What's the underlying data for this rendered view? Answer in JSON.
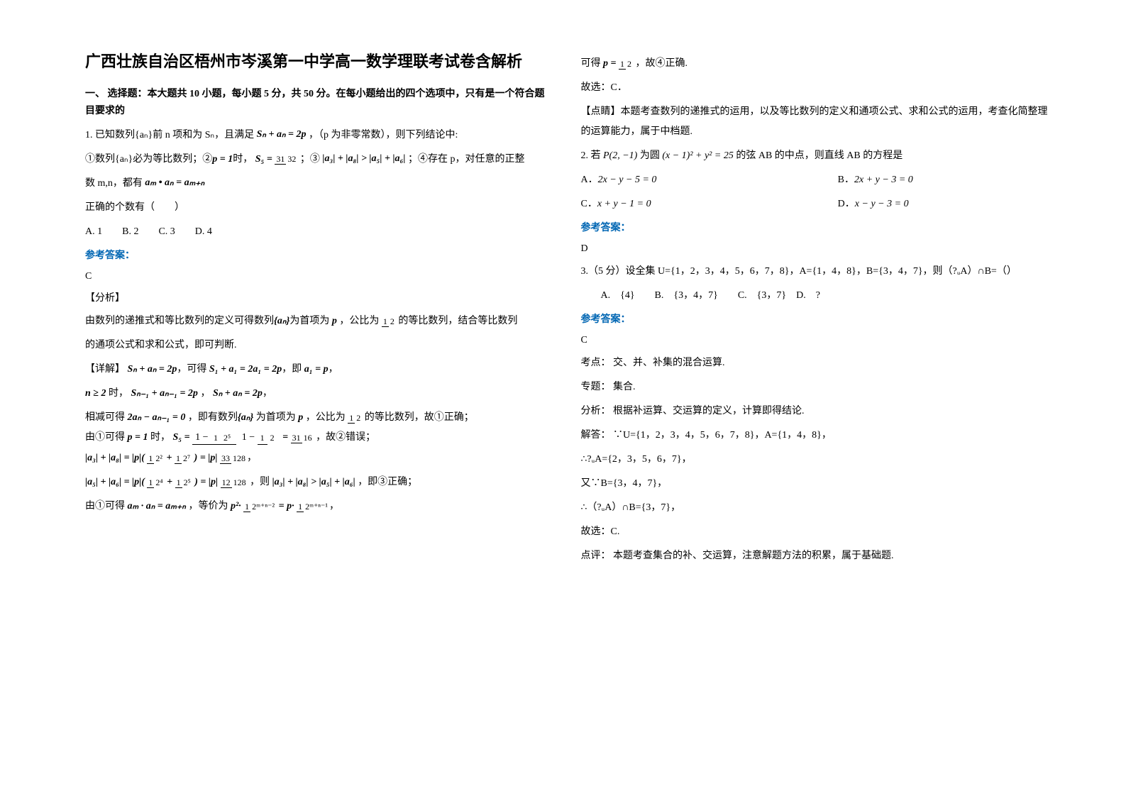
{
  "title": "广西壮族自治区梧州市岑溪第一中学高一数学理联考试卷含解析",
  "section1_head": "一、 选择题：本大题共 10 小题，每小题 5 分，共 50 分。在每小题给出的四个选项中，只有是一个符合题目要求的",
  "q1_intro": "1. 已知数列{aₙ}前 n 项和为 Sₙ，且满足 ",
  "q1_formula1": "Sₙ + aₙ = 2p",
  "q1_intro2": "，（p 为非零常数），则下列结论中:",
  "q1_line2a": "①数列{aₙ}必为等比数列；②",
  "q1_line2_p": "p = 1",
  "q1_line2b": "时，",
  "q1_s5_num": "31",
  "q1_s5_den": "32",
  "q1_line2c": "；③",
  "q1_abs": "|a₃| + |a₈| > |a₅| + |a₆|",
  "q1_line2d": "；④存在 p，对任意的正整",
  "q1_line3a": "数 m,n，都有 ",
  "q1_line3f": "aₘ • aₙ = aₘ₊ₙ",
  "q1_correct": "正确的个数有（　　）",
  "q1_opts": "A. 1　　B. 2　　C. 3　　D. 4",
  "answer_label": "参考答案：",
  "q1_ans": "C",
  "analysis_label": "【分析】",
  "q1_analysis1a": "由数列的递推式和等比数列的定义可得数列",
  "q1_analysis1b": "为首项为",
  "q1_analysis1c": "，公比为",
  "q1_half_top": "1",
  "q1_half_bot": "2",
  "q1_analysis1d": "的等比数列，结合等比数列",
  "q1_analysis2": "的通项公式和求和公式，即可判断.",
  "detail_label": "【详解】",
  "q1_d1": "Sₙ + aₙ = 2p",
  "q1_d1b": "，可得",
  "q1_d1c": "S₁ + a₁ = 2a₁ = 2p",
  "q1_d1d": "，即",
  "q1_d1e": "a₁ = p",
  "q1_d2a": "n ≥ 2",
  "q1_d2b": "时，",
  "q1_d2c": "Sₙ₋₁ + aₙ₋₁ = 2p",
  "q1_d2d": "，",
  "q1_d2e": "Sₙ + aₙ = 2p",
  "q1_d3a": "相减可得",
  "q1_d3b": "2aₙ − aₙ₋₁ = 0",
  "q1_d3c": "，即有数列",
  "q1_d3d": "为首项为",
  "q1_d3e": "，公比为",
  "q1_d3f": "的等比数列，故①正确；",
  "q1_d4a": "由①可得",
  "q1_d4b": "p = 1",
  "q1_d4c": "时，",
  "q1_s5eq_top1": "1",
  "q1_s5eq_top2": "2⁵",
  "q1_s5eq_bot1": "1",
  "q1_s5eq_bot2": "2",
  "q1_s5eq_r1": "31",
  "q1_s5eq_r2": "16",
  "q1_d4d": "，故②错误；",
  "q1_d5": "|a₃| + |a₈| = |p|(",
  "q1_d5a": "1",
  "q1_d5b": "2²",
  "q1_d5c": "1",
  "q1_d5d": "2⁷",
  "q1_d5e": ") = |p|",
  "q1_d5f": "33",
  "q1_d5g": "128",
  "q1_d6": "|a₅| + |a₆| = |p|(",
  "q1_d6a": "1",
  "q1_d6b": "2⁴",
  "q1_d6c": "1",
  "q1_d6d": "2⁵",
  "q1_d6e": ") = |p|",
  "q1_d6f": "12",
  "q1_d6g": "128",
  "q1_d6h": "，则",
  "q1_d6i": "|a₃| + |a₈| > |a₅| + |a₆|",
  "q1_d6j": "，即③正确；",
  "q1_d7a": "由①可得",
  "q1_d7b": "aₘ · aₙ = aₘ₊ₙ",
  "q1_d7c": "，等价为",
  "q1_d7d": "p²·",
  "q1_d7e": "1",
  "q1_d7f": "2ᵐ⁺ⁿ⁻²",
  "q1_d7g": " = p·",
  "q1_d7h": "1",
  "q1_d7i": "2ᵐ⁺ⁿ⁻¹",
  "q1_r1a": "可得",
  "q1_r1b_top": "1",
  "q1_r1b_bot": "2",
  "q1_r1c": "，故④正确.",
  "q1_r2": "故选：C．",
  "comment_label": "【点睛】",
  "q1_comment": "本题考查数列的递推式的运用，以及等比数列的定义和通项公式、求和公式的运用，考查化简整理的运算能力，属于中档题.",
  "q2_a": "2. 若",
  "q2_b": "P(2, −1)",
  "q2_c": "为圆",
  "q2_d": "(x − 1)² + y² = 25",
  "q2_e": "的弦 AB 的中点，则直线 AB 的方程是",
  "q2_optA": "2x − y − 5 = 0",
  "q2_optB": "2x + y − 3 = 0",
  "q2_optC": "x + y − 1 = 0",
  "q2_optD": "x − y − 3 = 0",
  "q2_ans": "D",
  "q3_text": "3.（5 分）设全集 U={1，2，3，4，5，6，7，8}，A={1，4，8}，B={3，4，7}，则（?ᵤA）∩B=（）",
  "q3_opts": "A.　{4}　　B.　{3，4，7}　　C.　{3，7}　D.　?",
  "q3_ans": "C",
  "q3_kd_label": "考点：",
  "q3_kd": "交、并、补集的混合运算.",
  "q3_zt_label": "专题：",
  "q3_zt": "集合.",
  "q3_fx_label": "分析：",
  "q3_fx": "根据补运算、交运算的定义，计算即得结论.",
  "q3_jd_label": "解答：",
  "q3_jd1": "∵U={1，2，3，4，5，6，7，8}，A={1，4，8}，",
  "q3_jd2": "∴?ᵤA={2，3，5，6，7}，",
  "q3_jd3": "又∵B={3，4，7}，",
  "q3_jd4": "∴（?ᵤA）∩B={3，7}，",
  "q3_jd5": "故选：C.",
  "q3_dp_label": "点评：",
  "q3_dp": "本题考查集合的补、交运算，注意解题方法的积累，属于基础题.",
  "colors": {
    "blue": "#0066b3",
    "text": "#000000",
    "bg": "#ffffff"
  },
  "fonts": {
    "body_size": 14,
    "title_size": 22
  }
}
